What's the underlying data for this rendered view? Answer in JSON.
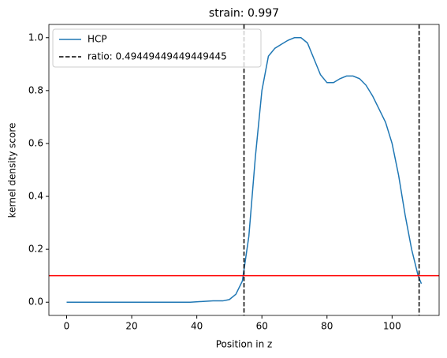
{
  "chart_data": {
    "type": "line",
    "title": "strain: 0.997",
    "x_label": "Position in z",
    "y_label": "kernel density score",
    "xlim": [
      -5.45,
      114.45
    ],
    "xticks": [
      0,
      20,
      40,
      60,
      80,
      100
    ],
    "ylim": [
      -0.05,
      1.05
    ],
    "yticks": [
      {
        "value": 0,
        "label": "0.0"
      },
      0.2,
      0.4,
      0.6,
      0.8,
      {
        "value": 1,
        "label": "1.0"
      }
    ],
    "series": [
      {
        "name": "HCP",
        "color": "#1f77b4",
        "x": [
          0,
          10,
          20,
          30,
          38,
          42,
          45,
          48,
          50,
          52,
          54,
          56,
          58,
          60,
          62,
          64,
          66,
          68,
          70,
          72,
          74,
          76,
          78,
          80,
          82,
          84,
          86,
          88,
          90,
          92,
          94,
          96,
          98,
          100,
          102,
          104,
          106,
          108,
          109
        ],
        "values": [
          0,
          0,
          0,
          0,
          0,
          0.003,
          0.005,
          0.005,
          0.01,
          0.03,
          0.08,
          0.25,
          0.55,
          0.8,
          0.93,
          0.96,
          0.975,
          0.99,
          1.0,
          1.0,
          0.98,
          0.92,
          0.86,
          0.83,
          0.83,
          0.845,
          0.855,
          0.855,
          0.845,
          0.82,
          0.78,
          0.73,
          0.68,
          0.6,
          0.48,
          0.33,
          0.2,
          0.1,
          0.07
        ]
      }
    ],
    "vlines": {
      "name": "ratio: 0.49449449449449445",
      "color": "#000000",
      "x": [
        54.5,
        108.3
      ]
    },
    "hline": {
      "value": 0.1,
      "color": "#ff0000"
    },
    "legend": "upper left"
  }
}
